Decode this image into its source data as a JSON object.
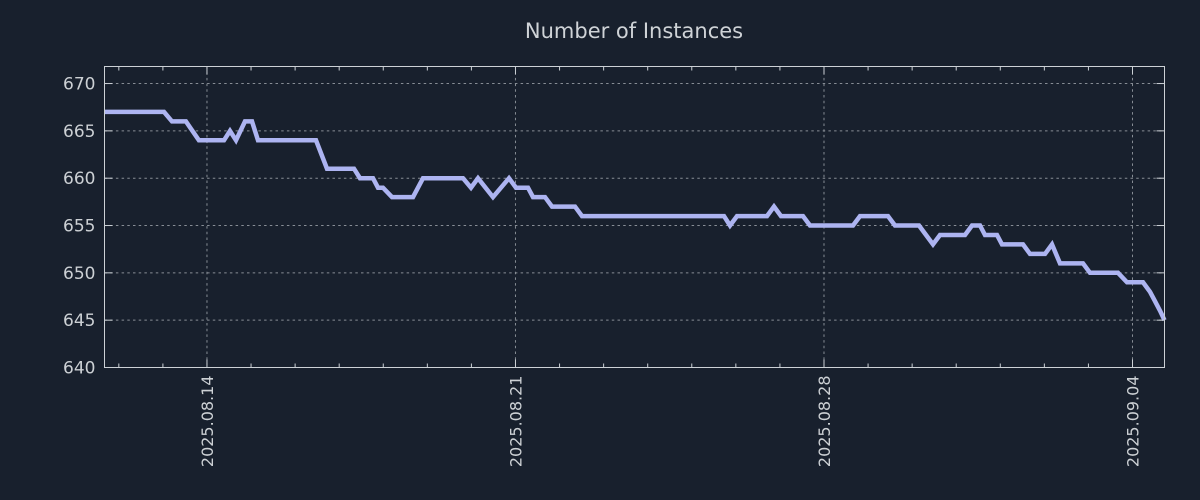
{
  "page": {
    "background_color": "#18202d"
  },
  "chart_data": {
    "type": "line",
    "title": "Number of Instances",
    "legend": null,
    "grid": "dotted, both axes",
    "colors": {
      "background": "#18202d",
      "series_line": "#adb4f1",
      "grid_line": "#878d95",
      "axis_border": "#ccd1d6",
      "tick_text": "#ccd0d4",
      "title_text": "#cfd3d7"
    },
    "x_axis": {
      "label": "",
      "tick_labels": [
        "2025.08.14",
        "2025.08.21",
        "2025.08.28",
        "2025.09.04"
      ],
      "tick_days": [
        0,
        7,
        14,
        21
      ],
      "minor_tick_every_days": 1,
      "domain_days_rel_first_tick": [
        -2.325,
        21.726
      ],
      "label_rotation_deg": -90
    },
    "y_axis": {
      "label": "",
      "ticks": [
        640,
        645,
        650,
        655,
        660,
        665,
        670
      ],
      "domain": [
        640,
        671.8
      ]
    },
    "series": [
      {
        "name": "instances",
        "points_day_value": [
          [
            -2.325,
            667
          ],
          [
            -0.976,
            667
          ],
          [
            -0.794,
            666
          ],
          [
            -0.477,
            666
          ],
          [
            -0.182,
            664
          ],
          [
            0.386,
            664
          ],
          [
            0.522,
            665
          ],
          [
            0.658,
            664
          ],
          [
            0.862,
            666
          ],
          [
            1.021,
            666
          ],
          [
            1.157,
            664
          ],
          [
            2.473,
            664
          ],
          [
            2.723,
            661
          ],
          [
            3.335,
            661
          ],
          [
            3.472,
            660
          ],
          [
            3.767,
            660
          ],
          [
            3.88,
            659
          ],
          [
            3.994,
            659
          ],
          [
            4.198,
            658
          ],
          [
            4.674,
            658
          ],
          [
            4.901,
            660
          ],
          [
            5.809,
            660
          ],
          [
            5.99,
            659
          ],
          [
            6.149,
            660
          ],
          [
            6.489,
            658
          ],
          [
            6.852,
            660
          ],
          [
            7.011,
            659
          ],
          [
            7.283,
            659
          ],
          [
            7.397,
            658
          ],
          [
            7.669,
            658
          ],
          [
            7.828,
            657
          ],
          [
            8.35,
            657
          ],
          [
            8.509,
            656
          ],
          [
            11.731,
            656
          ],
          [
            11.867,
            655
          ],
          [
            12.026,
            656
          ],
          [
            12.707,
            656
          ],
          [
            12.866,
            657
          ],
          [
            13.025,
            656
          ],
          [
            13.524,
            656
          ],
          [
            13.683,
            655
          ],
          [
            14.658,
            655
          ],
          [
            14.817,
            656
          ],
          [
            15.452,
            656
          ],
          [
            15.611,
            655
          ],
          [
            16.156,
            655
          ],
          [
            16.473,
            653
          ],
          [
            16.632,
            654
          ],
          [
            17.199,
            654
          ],
          [
            17.358,
            655
          ],
          [
            17.54,
            655
          ],
          [
            17.653,
            654
          ],
          [
            17.925,
            654
          ],
          [
            18.039,
            653
          ],
          [
            18.515,
            653
          ],
          [
            18.674,
            652
          ],
          [
            19.015,
            652
          ],
          [
            19.173,
            653
          ],
          [
            19.355,
            651
          ],
          [
            19.877,
            651
          ],
          [
            20.036,
            650
          ],
          [
            20.671,
            650
          ],
          [
            20.875,
            649
          ],
          [
            21.238,
            649
          ],
          [
            21.397,
            648
          ],
          [
            21.51,
            647
          ],
          [
            21.624,
            646
          ],
          [
            21.726,
            645
          ]
        ]
      }
    ]
  }
}
